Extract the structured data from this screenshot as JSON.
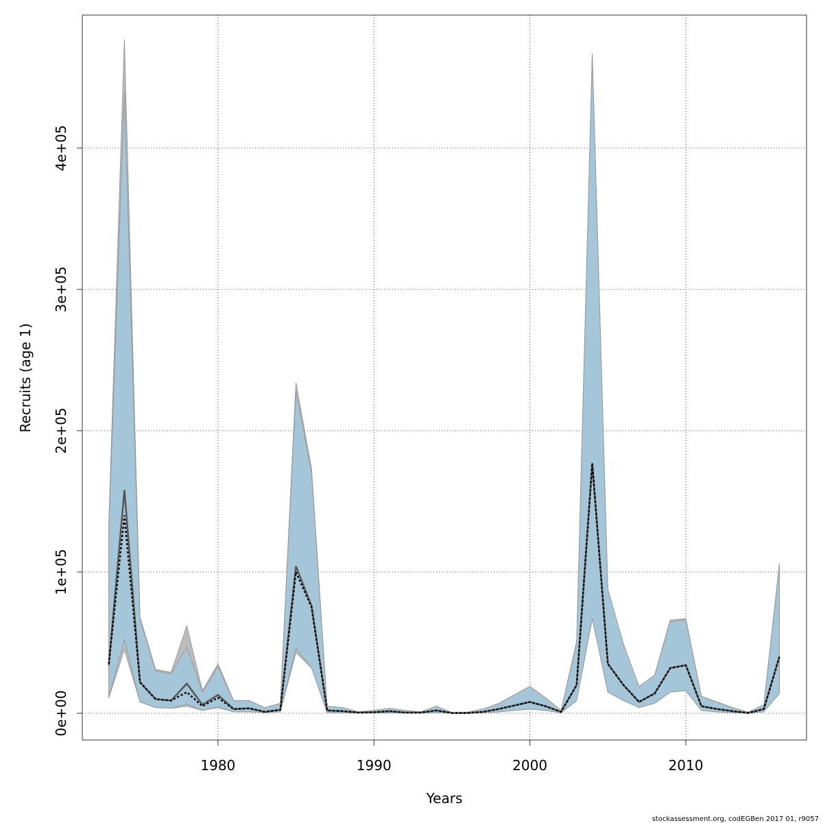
{
  "chart_data": {
    "type": "band-line",
    "x_label": "Years",
    "y_label": "Recruits (age 1)",
    "footer": "stockassessment.org, codEGBen 2017 01, r9057",
    "x": [
      1973,
      1974,
      1975,
      1976,
      1977,
      1978,
      1979,
      1980,
      1981,
      1982,
      1983,
      1984,
      1985,
      1986,
      1987,
      1988,
      1989,
      1990,
      1991,
      1992,
      1993,
      1994,
      1995,
      1996,
      1997,
      1998,
      1999,
      2000,
      2001,
      2002,
      2003,
      2004,
      2005,
      2006,
      2007,
      2008,
      2009,
      2010,
      2011,
      2012,
      2013,
      2014,
      2015,
      2016
    ],
    "bands": [
      {
        "color": "#bdbdbd",
        "upper": [
          135000,
          477000,
          68000,
          31000,
          29000,
          62000,
          16000,
          35000,
          9000,
          9000,
          4000,
          7000,
          234000,
          173000,
          5000,
          4000,
          1000,
          2000,
          3500,
          2000,
          1000,
          5000,
          500,
          800,
          3000,
          7000,
          13000,
          19000,
          11000,
          2000,
          51000,
          467000,
          87000,
          48000,
          19000,
          27000,
          66000,
          67000,
          12000,
          8000,
          4000,
          800,
          6000,
          106000
        ],
        "lower": [
          11000,
          45000,
          8000,
          4000,
          3500,
          5000,
          2000,
          4000,
          1000,
          1000,
          500,
          1000,
          43000,
          32000,
          500,
          400,
          100,
          200,
          400,
          100,
          100,
          500,
          50,
          50,
          300,
          1000,
          2000,
          3000,
          2000,
          300,
          9000,
          67000,
          15000,
          9000,
          4000,
          7000,
          15000,
          16000,
          2000,
          1000,
          500,
          50,
          1000,
          14000
        ]
      },
      {
        "color": "#a5c5d8",
        "upper": [
          130000,
          440000,
          67000,
          30000,
          28000,
          47000,
          15000,
          33000,
          9000,
          9000,
          4000,
          7000,
          228000,
          170000,
          5000,
          4000,
          1000,
          2000,
          3500,
          2000,
          1000,
          5000,
          500,
          800,
          3000,
          7000,
          13000,
          19000,
          11000,
          2000,
          50000,
          466000,
          88000,
          49000,
          19000,
          27000,
          65000,
          66000,
          12000,
          8000,
          4000,
          800,
          6000,
          105000
        ],
        "lower": [
          11000,
          52000,
          8000,
          4000,
          3500,
          6500,
          2000,
          4500,
          1000,
          1000,
          500,
          1000,
          46000,
          32000,
          500,
          400,
          100,
          200,
          400,
          100,
          100,
          500,
          50,
          50,
          300,
          1000,
          2000,
          3000,
          2000,
          300,
          9000,
          67000,
          15000,
          9000,
          4000,
          7000,
          15000,
          16000,
          2000,
          1000,
          500,
          50,
          1000,
          14000
        ]
      }
    ],
    "lines": [
      {
        "color": "#555555",
        "dashed": false,
        "values": [
          34000,
          158000,
          22000,
          10000,
          9000,
          21000,
          6000,
          13000,
          3000,
          3500,
          1000,
          2500,
          104000,
          76000,
          2000,
          1500,
          500,
          700,
          1500,
          500,
          500,
          2000,
          200,
          200,
          1000,
          3000,
          5500,
          8000,
          5000,
          1000,
          20000,
          177000,
          35000,
          20000,
          8000,
          14000,
          32000,
          34000,
          5000,
          3000,
          1500,
          200,
          3000,
          40000
        ]
      },
      {
        "color": "#000000",
        "dashed": true,
        "values": [
          35000,
          140000,
          22000,
          10000,
          9000,
          15000,
          5000,
          11000,
          3000,
          3500,
          1000,
          2500,
          100000,
          75000,
          2000,
          1500,
          500,
          700,
          1500,
          500,
          500,
          2000,
          200,
          200,
          1000,
          3000,
          5500,
          8000,
          5000,
          1000,
          20000,
          177000,
          35000,
          20000,
          8000,
          14000,
          32000,
          34000,
          5000,
          3000,
          1500,
          200,
          3000,
          40000
        ]
      }
    ],
    "xlim": [
      1971.3,
      2017.74
    ],
    "xticks": [
      1980,
      1990,
      2000,
      2010
    ],
    "ylim": [
      -18932,
      494175
    ],
    "yticks": [
      {
        "value": 0,
        "label": "0e+00"
      },
      {
        "value": 100000,
        "label": "1e+05"
      },
      {
        "value": 200000,
        "label": "2e+05"
      },
      {
        "value": 300000,
        "label": "3e+05"
      },
      {
        "value": 400000,
        "label": "4e+05"
      }
    ],
    "grid": true
  }
}
